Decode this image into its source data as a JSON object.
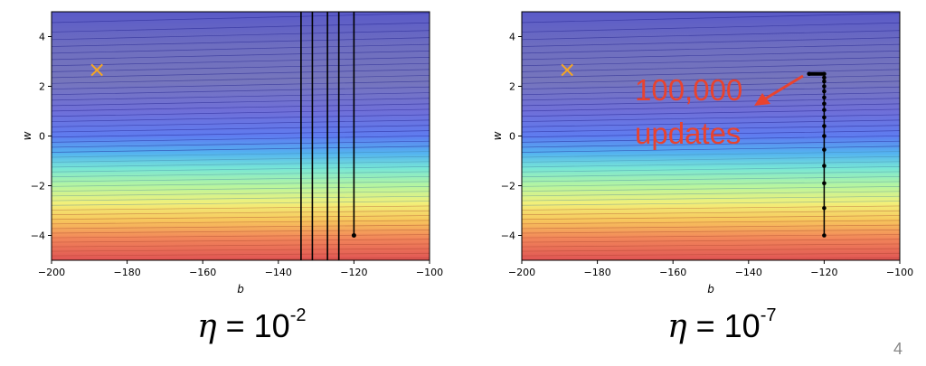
{
  "chart_data": [
    {
      "type": "contour",
      "xlabel": "b",
      "ylabel": "w",
      "xlim": [
        -200,
        -100
      ],
      "ylim": [
        -5,
        5
      ],
      "xticks": [
        "−200",
        "−180",
        "−160",
        "−140",
        "−120",
        "−100"
      ],
      "yticks": [
        "−4",
        "−2",
        "0",
        "2",
        "4"
      ],
      "target_marker": {
        "b": -188,
        "w": 2.67,
        "symbol": "×",
        "color": "#f5a623"
      },
      "path": {
        "start": {
          "b": -120,
          "w": -4
        },
        "vertical_lines_b": [
          -120,
          -124,
          -127,
          -131,
          -134
        ],
        "description_color": "#000000"
      },
      "caption": {
        "symbol": "η",
        "equals": "=",
        "base": "10",
        "exponent": "-2"
      }
    },
    {
      "type": "contour",
      "xlabel": "b",
      "ylabel": "w",
      "xlim": [
        -200,
        -100
      ],
      "ylim": [
        -5,
        5
      ],
      "xticks": [
        "−200",
        "−180",
        "−160",
        "−140",
        "−120",
        "−100"
      ],
      "yticks": [
        "−4",
        "−2",
        "0",
        "2",
        "4"
      ],
      "target_marker": {
        "b": -188,
        "w": 2.67,
        "symbol": "×",
        "color": "#f5a623"
      },
      "path": {
        "points": [
          {
            "b": -120,
            "w": -4.0
          },
          {
            "b": -120,
            "w": -2.9
          },
          {
            "b": -120,
            "w": -1.9
          },
          {
            "b": -120,
            "w": -1.2
          },
          {
            "b": -120,
            "w": -0.55
          },
          {
            "b": -120,
            "w": 0.0
          },
          {
            "b": -120,
            "w": 0.4
          },
          {
            "b": -120,
            "w": 0.75
          },
          {
            "b": -120,
            "w": 1.05
          },
          {
            "b": -120,
            "w": 1.3
          },
          {
            "b": -120,
            "w": 1.55
          },
          {
            "b": -120,
            "w": 1.8
          },
          {
            "b": -120,
            "w": 2.0
          },
          {
            "b": -120,
            "w": 2.2
          },
          {
            "b": -120,
            "w": 2.35
          },
          {
            "b": -120,
            "w": 2.5
          },
          {
            "b": -124,
            "w": 2.5
          }
        ]
      },
      "annotation": {
        "line1": "100,000",
        "line2": "updates",
        "color": "#e8432f"
      },
      "caption": {
        "symbol": "η",
        "equals": "=",
        "base": "10",
        "exponent": "-7"
      }
    }
  ],
  "page_number": "4"
}
